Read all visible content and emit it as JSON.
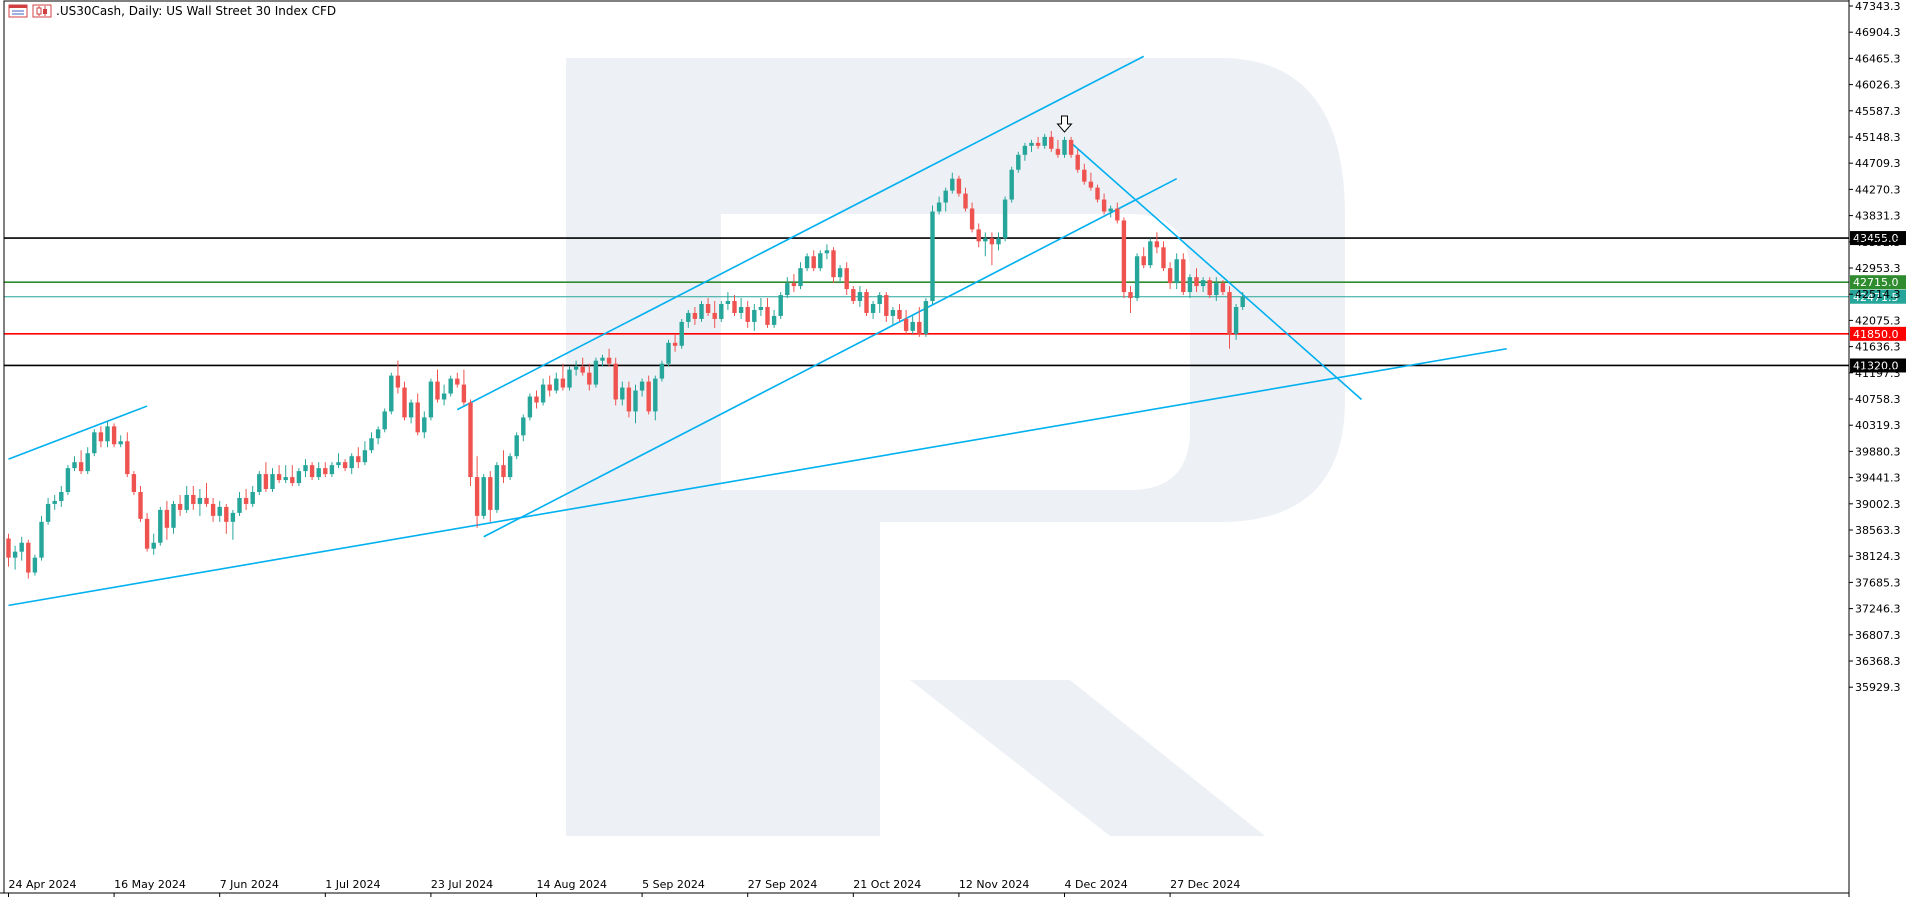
{
  "header": {
    "symbol": ".US30Cash, Daily:",
    "description": "US Wall Street 30 Index CFD",
    "icons": [
      "chart-window-icon",
      "candlestick-icon"
    ]
  },
  "chart_data": {
    "type": "candlestick",
    "title": ".US30Cash, Daily:  US Wall Street 30 Index CFD",
    "ylim": [
      35490.0,
      47343.3
    ],
    "y_ticks": [
      47343.3,
      46904.3,
      46465.3,
      46026.3,
      45587.3,
      45148.3,
      44709.3,
      44270.3,
      43831.3,
      43392.3,
      42953.3,
      42514.3,
      42075.3,
      41636.3,
      41197.3,
      40758.3,
      40319.3,
      39880.3,
      39441.3,
      39002.3,
      38563.3,
      38124.3,
      37685.3,
      37246.3,
      36807.3,
      36368.3,
      35929.3
    ],
    "x_ticks": [
      "24 Apr 2024",
      "16 May 2024",
      "7 Jun 2024",
      "1 Jul 2024",
      "23 Jul 2024",
      "14 Aug 2024",
      "5 Sep 2024",
      "27 Sep 2024",
      "21 Oct 2024",
      "12 Nov 2024",
      "4 Dec 2024",
      "27 Dec 2024"
    ],
    "x_tick_bars": [
      0,
      16,
      32,
      48,
      64,
      80,
      96,
      112,
      128,
      144,
      160,
      176
    ],
    "grid": false,
    "colors": {
      "bull": "#26a69a",
      "bear": "#ef5350",
      "trendline": "#00b0f0",
      "support_resistance": "#000000",
      "target": "#2e8b2e",
      "stop": "#ff0000",
      "current": "#26a69a",
      "watermark": "#edf0f5"
    },
    "horizontal_levels": [
      {
        "value": 43455.0,
        "label": "43455.0",
        "color": "#000000"
      },
      {
        "value": 42715.0,
        "label": "42715.0",
        "color": "#2e8b2e"
      },
      {
        "value": 42471.5,
        "label": "42471.5",
        "color": "#26a69a"
      },
      {
        "value": 41850.0,
        "label": "41850.0",
        "color": "#ff0000"
      },
      {
        "value": 41320.0,
        "label": "41320.0",
        "color": "#000000"
      }
    ],
    "trendlines": [
      {
        "from": [
          0,
          39750
        ],
        "to": [
          21,
          40640
        ]
      },
      {
        "from": [
          0,
          37300
        ],
        "to": [
          227,
          41600
        ]
      },
      {
        "from": [
          68,
          40580
        ],
        "to": [
          172,
          46500
        ]
      },
      {
        "from": [
          72,
          38450
        ],
        "to": [
          177,
          44450
        ]
      },
      {
        "from": [
          161,
          45050
        ],
        "to": [
          205,
          40750
        ]
      }
    ],
    "marker": {
      "type": "arrow-down",
      "bar": 160,
      "value": 45300
    },
    "ohlc": [
      [
        38420,
        38500,
        37950,
        38100
      ],
      [
        38100,
        38300,
        37900,
        38200
      ],
      [
        38200,
        38450,
        38050,
        38350
      ],
      [
        38350,
        38400,
        37750,
        37850
      ],
      [
        37850,
        38150,
        37800,
        38100
      ],
      [
        38100,
        38800,
        38050,
        38700
      ],
      [
        38700,
        39100,
        38650,
        39000
      ],
      [
        39000,
        39150,
        38900,
        39050
      ],
      [
        39050,
        39300,
        38950,
        39200
      ],
      [
        39200,
        39650,
        39150,
        39600
      ],
      [
        39600,
        39800,
        39550,
        39700
      ],
      [
        39700,
        39900,
        39500,
        39550
      ],
      [
        39550,
        39950,
        39500,
        39850
      ],
      [
        39850,
        40250,
        39800,
        40200
      ],
      [
        40200,
        40300,
        39950,
        40050
      ],
      [
        40050,
        40400,
        39950,
        40300
      ],
      [
        40300,
        40350,
        39950,
        40000
      ],
      [
        40000,
        40150,
        39950,
        40050
      ],
      [
        40050,
        40200,
        39450,
        39500
      ],
      [
        39500,
        39550,
        39150,
        39200
      ],
      [
        39200,
        39300,
        38700,
        38750
      ],
      [
        38750,
        38850,
        38200,
        38250
      ],
      [
        38250,
        38500,
        38150,
        38350
      ],
      [
        38350,
        38950,
        38300,
        38900
      ],
      [
        38900,
        39050,
        38400,
        38600
      ],
      [
        38600,
        39050,
        38500,
        39000
      ],
      [
        39000,
        39150,
        38800,
        38900
      ],
      [
        38900,
        39300,
        38850,
        39150
      ],
      [
        39150,
        39300,
        38900,
        39000
      ],
      [
        39000,
        39250,
        38800,
        39100
      ],
      [
        39100,
        39350,
        38950,
        39000
      ],
      [
        39000,
        39100,
        38700,
        38800
      ],
      [
        38800,
        39050,
        38700,
        38950
      ],
      [
        38950,
        39000,
        38500,
        38700
      ],
      [
        38700,
        38900,
        38400,
        38850
      ],
      [
        38850,
        39200,
        38800,
        39100
      ],
      [
        39100,
        39250,
        38900,
        39000
      ],
      [
        39000,
        39300,
        38950,
        39200
      ],
      [
        39200,
        39550,
        39150,
        39500
      ],
      [
        39500,
        39700,
        39200,
        39250
      ],
      [
        39250,
        39600,
        39200,
        39500
      ],
      [
        39500,
        39650,
        39350,
        39400
      ],
      [
        39400,
        39650,
        39350,
        39450
      ],
      [
        39450,
        39650,
        39300,
        39350
      ],
      [
        39350,
        39600,
        39300,
        39550
      ],
      [
        39550,
        39750,
        39450,
        39650
      ],
      [
        39650,
        39700,
        39400,
        39450
      ],
      [
        39450,
        39700,
        39400,
        39600
      ],
      [
        39600,
        39700,
        39450,
        39500
      ],
      [
        39500,
        39700,
        39450,
        39650
      ],
      [
        39650,
        39850,
        39600,
        39700
      ],
      [
        39700,
        39750,
        39550,
        39600
      ],
      [
        39600,
        39850,
        39500,
        39800
      ],
      [
        39800,
        39950,
        39600,
        39700
      ],
      [
        39700,
        40050,
        39650,
        39900
      ],
      [
        39900,
        40200,
        39850,
        40100
      ],
      [
        40100,
        40300,
        40000,
        40250
      ],
      [
        40250,
        40600,
        40200,
        40550
      ],
      [
        40550,
        41200,
        40500,
        41150
      ],
      [
        41150,
        41400,
        40850,
        40950
      ],
      [
        40950,
        41050,
        40400,
        40450
      ],
      [
        40450,
        40750,
        40350,
        40700
      ],
      [
        40700,
        40850,
        40150,
        40200
      ],
      [
        40200,
        40550,
        40100,
        40450
      ],
      [
        40450,
        41100,
        40400,
        41050
      ],
      [
        41050,
        41250,
        40700,
        40750
      ],
      [
        40750,
        41000,
        40650,
        40850
      ],
      [
        40850,
        41150,
        40800,
        41100
      ],
      [
        41100,
        41200,
        40950,
        41000
      ],
      [
        41000,
        41250,
        40650,
        40700
      ],
      [
        40700,
        40750,
        39300,
        39450
      ],
      [
        39450,
        39800,
        38600,
        38800
      ],
      [
        38800,
        39500,
        38750,
        39450
      ],
      [
        39450,
        39550,
        38700,
        38900
      ],
      [
        38900,
        39700,
        38850,
        39650
      ],
      [
        39650,
        39900,
        39350,
        39450
      ],
      [
        39450,
        39850,
        39400,
        39800
      ],
      [
        39800,
        40200,
        39750,
        40150
      ],
      [
        40150,
        40500,
        40050,
        40450
      ],
      [
        40450,
        40850,
        40400,
        40800
      ],
      [
        40800,
        40900,
        40600,
        40700
      ],
      [
        40700,
        41100,
        40650,
        41000
      ],
      [
        41000,
        41150,
        40800,
        40900
      ],
      [
        40900,
        41200,
        40850,
        41100
      ],
      [
        41100,
        41350,
        40900,
        40950
      ],
      [
        40950,
        41300,
        40900,
        41250
      ],
      [
        41250,
        41400,
        41150,
        41300
      ],
      [
        41300,
        41450,
        41150,
        41200
      ],
      [
        41200,
        41350,
        40900,
        41000
      ],
      [
        41000,
        41450,
        40950,
        41400
      ],
      [
        41400,
        41500,
        41300,
        41450
      ],
      [
        41450,
        41600,
        41300,
        41350
      ],
      [
        41350,
        41450,
        40650,
        40750
      ],
      [
        40750,
        41050,
        40650,
        40950
      ],
      [
        40950,
        41050,
        40450,
        40550
      ],
      [
        40550,
        41000,
        40350,
        40900
      ],
      [
        40900,
        41100,
        40800,
        41050
      ],
      [
        41050,
        41150,
        40500,
        40550
      ],
      [
        40550,
        41150,
        40400,
        41100
      ],
      [
        41100,
        41400,
        41050,
        41350
      ],
      [
        41350,
        41750,
        41300,
        41700
      ],
      [
        41700,
        41850,
        41550,
        41650
      ],
      [
        41650,
        42100,
        41600,
        42050
      ],
      [
        42050,
        42250,
        41950,
        42200
      ],
      [
        42200,
        42300,
        42000,
        42100
      ],
      [
        42100,
        42400,
        42050,
        42350
      ],
      [
        42350,
        42450,
        42150,
        42200
      ],
      [
        42200,
        42400,
        41950,
        42100
      ],
      [
        42100,
        42400,
        42050,
        42350
      ],
      [
        42350,
        42550,
        42250,
        42400
      ],
      [
        42400,
        42500,
        42150,
        42200
      ],
      [
        42200,
        42450,
        42100,
        42300
      ],
      [
        42300,
        42400,
        41950,
        42050
      ],
      [
        42050,
        42350,
        41900,
        42250
      ],
      [
        42250,
        42450,
        42150,
        42300
      ],
      [
        42300,
        42450,
        41950,
        42000
      ],
      [
        42000,
        42250,
        41950,
        42150
      ],
      [
        42150,
        42550,
        42100,
        42500
      ],
      [
        42500,
        42800,
        42450,
        42700
      ],
      [
        42700,
        42850,
        42550,
        42650
      ],
      [
        42650,
        43050,
        42600,
        42950
      ],
      [
        42950,
        43200,
        42900,
        43150
      ],
      [
        43150,
        43250,
        42900,
        42950
      ],
      [
        42950,
        43250,
        42900,
        43200
      ],
      [
        43200,
        43350,
        43100,
        43250
      ],
      [
        43250,
        43300,
        42700,
        42800
      ],
      [
        42800,
        43000,
        42700,
        42950
      ],
      [
        42950,
        43050,
        42500,
        42600
      ],
      [
        42600,
        42650,
        42350,
        42400
      ],
      [
        42400,
        42650,
        42300,
        42550
      ],
      [
        42550,
        42600,
        42150,
        42200
      ],
      [
        42200,
        42400,
        42100,
        42350
      ],
      [
        42350,
        42550,
        42200,
        42500
      ],
      [
        42500,
        42550,
        42050,
        42150
      ],
      [
        42150,
        42300,
        42000,
        42250
      ],
      [
        42250,
        42350,
        42050,
        42100
      ],
      [
        42100,
        42250,
        41850,
        41900
      ],
      [
        41900,
        42150,
        41850,
        42050
      ],
      [
        42050,
        42300,
        41800,
        41850
      ],
      [
        41850,
        42450,
        41800,
        42400
      ],
      [
        42400,
        44000,
        42350,
        43900
      ],
      [
        43900,
        44150,
        43850,
        44050
      ],
      [
        44050,
        44300,
        43900,
        44250
      ],
      [
        44250,
        44550,
        44200,
        44450
      ],
      [
        44450,
        44500,
        44150,
        44200
      ],
      [
        44200,
        44300,
        43900,
        43950
      ],
      [
        43950,
        44050,
        43550,
        43600
      ],
      [
        43600,
        43700,
        43300,
        43400
      ],
      [
        43400,
        43550,
        43150,
        43450
      ],
      [
        43450,
        43550,
        43000,
        43350
      ],
      [
        43350,
        43550,
        43250,
        43450
      ],
      [
        43450,
        44150,
        43400,
        44100
      ],
      [
        44100,
        44650,
        44050,
        44600
      ],
      [
        44600,
        44900,
        44550,
        44850
      ],
      [
        44850,
        45050,
        44750,
        45000
      ],
      [
        45000,
        45100,
        44900,
        45050
      ],
      [
        45050,
        45150,
        44950,
        45000
      ],
      [
        45000,
        45200,
        44950,
        45150
      ],
      [
        45150,
        45250,
        44900,
        44950
      ],
      [
        44950,
        45100,
        44800,
        44850
      ],
      [
        44850,
        45150,
        44800,
        45100
      ],
      [
        45100,
        45150,
        44800,
        44850
      ],
      [
        44850,
        44950,
        44550,
        44600
      ],
      [
        44600,
        44700,
        44350,
        44400
      ],
      [
        44400,
        44550,
        44250,
        44300
      ],
      [
        44300,
        44350,
        44050,
        44100
      ],
      [
        44100,
        44200,
        43850,
        43900
      ],
      [
        43900,
        44000,
        43800,
        43950
      ],
      [
        43950,
        44050,
        43700,
        43750
      ],
      [
        43750,
        43800,
        42450,
        42550
      ],
      [
        42550,
        42650,
        42200,
        42450
      ],
      [
        42450,
        43200,
        42400,
        43150
      ],
      [
        43150,
        43300,
        42950,
        43000
      ],
      [
        43000,
        43450,
        42950,
        43400
      ],
      [
        43400,
        43550,
        43200,
        43300
      ],
      [
        43300,
        43400,
        42900,
        42950
      ],
      [
        42950,
        43050,
        42600,
        42700
      ],
      [
        42700,
        43200,
        42600,
        43100
      ],
      [
        43100,
        43200,
        42500,
        42550
      ],
      [
        42550,
        42850,
        42450,
        42800
      ],
      [
        42800,
        42950,
        42550,
        42650
      ],
      [
        42650,
        42800,
        42550,
        42750
      ],
      [
        42750,
        42800,
        42450,
        42500
      ],
      [
        42500,
        42800,
        42400,
        42700
      ],
      [
        42700,
        42750,
        42500,
        42550
      ],
      [
        42550,
        42650,
        41600,
        41850
      ],
      [
        41850,
        42350,
        41750,
        42300
      ],
      [
        42300,
        42550,
        42250,
        42470
      ]
    ]
  }
}
